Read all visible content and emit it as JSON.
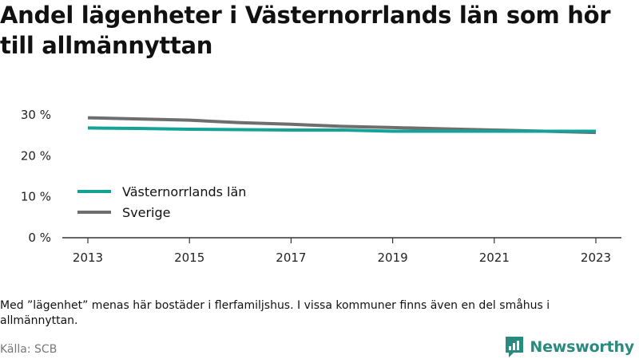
{
  "header": {
    "title": "Andel lägenheter i Västernorrlands län som hör till allmännyttan"
  },
  "chart_data": {
    "type": "line",
    "title": "Andel lägenheter i Västernorrlands län som hör till allmännyttan",
    "xlabel": "",
    "ylabel": "",
    "x": [
      2013,
      2014,
      2015,
      2016,
      2017,
      2018,
      2019,
      2020,
      2021,
      2022,
      2023
    ],
    "x_ticks": [
      "2013",
      "2015",
      "2017",
      "2019",
      "2021",
      "2023"
    ],
    "y_ticks": [
      "0 %",
      "10 %",
      "20 %",
      "30 %"
    ],
    "ylim": [
      0,
      30
    ],
    "grid": false,
    "legend_position": "center-left",
    "series": [
      {
        "name": "Västernorrlands län",
        "color": "#14a396",
        "values": [
          26.8,
          26.7,
          26.5,
          26.4,
          26.3,
          26.3,
          26.0,
          26.0,
          26.0,
          26.0,
          26.0
        ]
      },
      {
        "name": "Sverige",
        "color": "#6e6e70",
        "values": [
          29.3,
          29.0,
          28.7,
          28.1,
          27.7,
          27.2,
          26.9,
          26.6,
          26.3,
          26.0,
          25.7
        ]
      }
    ]
  },
  "footer": {
    "note": "Med ”lägenhet” menas här bostäder i flerfamiljshus. I vissa kommuner finns även en del småhus i allmännyttan.",
    "source": "Källa: SCB",
    "brand": "Newsworthy",
    "brand_color": "#2a8a80"
  }
}
